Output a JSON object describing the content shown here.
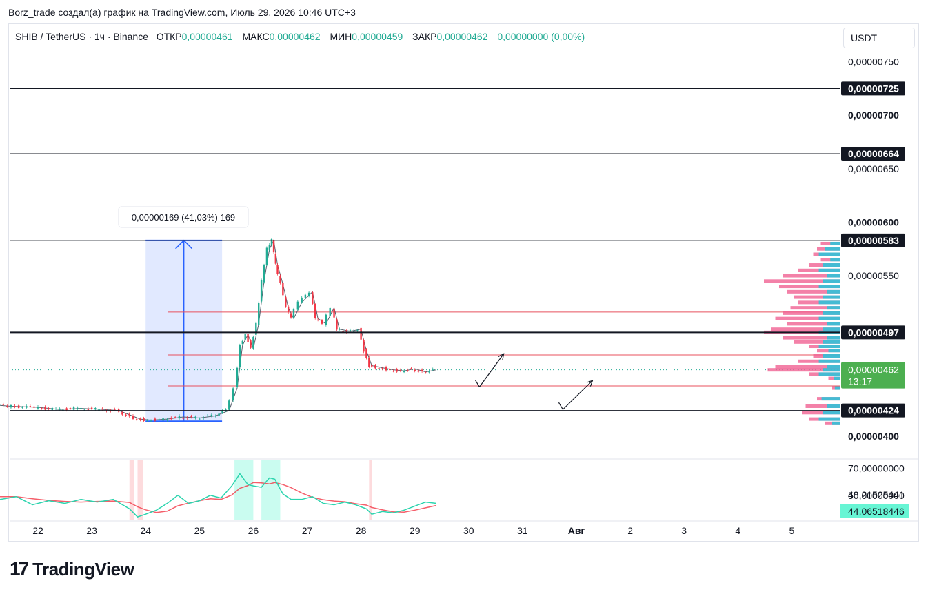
{
  "caption": "Borz_trade создал(а) график на TradingView.com, Июль 29, 2026 10:46 UTC+3",
  "legend": {
    "symbol": "SHIB / TetherUS · 1ч · Binance",
    "open_label": "ОТКР",
    "open": "0,00000461",
    "high_label": "МАКС",
    "high": "0,00000462",
    "low_label": "МИН",
    "low": "0,00000459",
    "close_label": "ЗАКР",
    "close": "0,00000462",
    "change": "0,00000000 (0,00%)"
  },
  "currency": "USDT",
  "logo": {
    "mark": "17",
    "word": "TradingView"
  },
  "colors": {
    "up": "#22ab94",
    "down": "#f23645",
    "accent": "#2962ff",
    "price_badge": "#4caf50",
    "rsi_badge": "#67f5d4"
  },
  "chart_data": {
    "type": "line",
    "price_axis": {
      "range": [
        3.8e-06,
        7.6e-06
      ],
      "ticks": [
        {
          "value": 7.5e-06,
          "label": "0,00000750"
        },
        {
          "value": 7e-06,
          "label": "0,00000700"
        },
        {
          "value": 6.5e-06,
          "label": "0,00000650"
        },
        {
          "value": 6e-06,
          "label": "0,00000600"
        },
        {
          "value": 5.5e-06,
          "label": "0,00000550"
        },
        {
          "value": 4e-06,
          "label": "0,00000400"
        }
      ]
    },
    "x_axis": {
      "labels": [
        {
          "day": 22,
          "label": "22"
        },
        {
          "day": 23,
          "label": "23"
        },
        {
          "day": 24,
          "label": "24"
        },
        {
          "day": 25,
          "label": "25"
        },
        {
          "day": 26,
          "label": "26"
        },
        {
          "day": 27,
          "label": "27"
        },
        {
          "day": 28,
          "label": "28"
        },
        {
          "day": 29,
          "label": "29"
        },
        {
          "day": 30,
          "label": "30"
        },
        {
          "day": 31,
          "label": "31"
        },
        {
          "day": 32,
          "label": "Авг"
        },
        {
          "day": 33,
          "label": "2"
        },
        {
          "day": 34,
          "label": "3"
        },
        {
          "day": 35,
          "label": "4"
        },
        {
          "day": 36,
          "label": "5"
        }
      ]
    },
    "horizontal_levels": [
      {
        "value": 7.25e-06,
        "label": "0,00000725",
        "style": "black"
      },
      {
        "value": 6.64e-06,
        "label": "0,00000664",
        "style": "black"
      },
      {
        "value": 5.83e-06,
        "label": "0,00000583",
        "style": "black"
      },
      {
        "value": 4.97e-06,
        "label": "0,00000497",
        "style": "black-bold"
      },
      {
        "value": 4.24e-06,
        "label": "0,00000424",
        "style": "black"
      }
    ],
    "red_levels": [
      5.16e-06,
      4.76e-06,
      4.47e-06
    ],
    "current_price": {
      "value": 4.62e-06,
      "label": "0,00000462",
      "countdown": "13:17"
    },
    "measure": {
      "from_day": 24.0,
      "to_day": 25.42,
      "low": 4.14e-06,
      "high": 5.83e-06,
      "label": "0,00000169 (41,03%) 169"
    },
    "price_path": [
      [
        21.0,
        4.3
      ],
      [
        21.5,
        4.28
      ],
      [
        22.0,
        4.27
      ],
      [
        22.4,
        4.25
      ],
      [
        22.8,
        4.26
      ],
      [
        23.2,
        4.25
      ],
      [
        23.5,
        4.24
      ],
      [
        23.7,
        4.2
      ],
      [
        23.9,
        4.16
      ],
      [
        24.1,
        4.15
      ],
      [
        24.4,
        4.16
      ],
      [
        24.7,
        4.18
      ],
      [
        25.0,
        4.17
      ],
      [
        25.3,
        4.19
      ],
      [
        25.55,
        4.24
      ],
      [
        25.7,
        4.45
      ],
      [
        25.8,
        4.85
      ],
      [
        25.9,
        4.95
      ],
      [
        26.0,
        4.82
      ],
      [
        26.1,
        5.05
      ],
      [
        26.2,
        5.45
      ],
      [
        26.3,
        5.75
      ],
      [
        26.38,
        5.83
      ],
      [
        26.45,
        5.6
      ],
      [
        26.55,
        5.42
      ],
      [
        26.65,
        5.2
      ],
      [
        26.75,
        5.1
      ],
      [
        26.9,
        5.25
      ],
      [
        27.1,
        5.35
      ],
      [
        27.2,
        5.1
      ],
      [
        27.35,
        5.05
      ],
      [
        27.5,
        5.2
      ],
      [
        27.6,
        5.0
      ],
      [
        27.8,
        4.98
      ],
      [
        28.0,
        5.0
      ],
      [
        28.1,
        4.8
      ],
      [
        28.2,
        4.66
      ],
      [
        28.4,
        4.64
      ],
      [
        28.6,
        4.62
      ],
      [
        28.8,
        4.61
      ],
      [
        29.0,
        4.63
      ],
      [
        29.2,
        4.6
      ],
      [
        29.4,
        4.62
      ]
    ],
    "projection_arrows": [
      [
        [
          30.2,
          4.46
        ],
        [
          30.65,
          4.77
        ]
      ],
      [
        [
          31.75,
          4.25
        ],
        [
          32.3,
          4.52
        ]
      ]
    ],
    "volume_profile_rows": [
      [
        5.8,
        0.25
      ],
      [
        5.75,
        0.3
      ],
      [
        5.7,
        0.35
      ],
      [
        5.65,
        0.25
      ],
      [
        5.6,
        0.4
      ],
      [
        5.55,
        0.55
      ],
      [
        5.5,
        0.75
      ],
      [
        5.45,
        1.0
      ],
      [
        5.4,
        0.8
      ],
      [
        5.35,
        0.7
      ],
      [
        5.3,
        0.6
      ],
      [
        5.25,
        0.55
      ],
      [
        5.2,
        0.65
      ],
      [
        5.15,
        0.75
      ],
      [
        5.1,
        0.85
      ],
      [
        5.05,
        0.7
      ],
      [
        5.0,
        0.9
      ],
      [
        4.97,
        1.0
      ],
      [
        4.92,
        0.75
      ],
      [
        4.88,
        0.6
      ],
      [
        4.84,
        0.4
      ],
      [
        4.8,
        0.3
      ],
      [
        4.75,
        0.35
      ],
      [
        4.7,
        0.55
      ],
      [
        4.65,
        0.85
      ],
      [
        4.62,
        0.95
      ],
      [
        4.58,
        0.4
      ],
      [
        4.54,
        0.15
      ],
      [
        4.45,
        0.1
      ],
      [
        4.35,
        0.3
      ],
      [
        4.28,
        0.45
      ],
      [
        4.22,
        0.5
      ],
      [
        4.16,
        0.4
      ],
      [
        4.12,
        0.2
      ]
    ],
    "rsi": {
      "ticks": [
        {
          "value": 70,
          "label": "70,00000000"
        },
        {
          "value": 50,
          "label": "50,00000000"
        }
      ],
      "ma_label": "48,21525441",
      "current_label": "44,06518446",
      "range": [
        32,
        76
      ],
      "path": [
        [
          21.0,
          51
        ],
        [
          21.3,
          47
        ],
        [
          21.6,
          49
        ],
        [
          21.9,
          43
        ],
        [
          22.2,
          46
        ],
        [
          22.5,
          44
        ],
        [
          22.8,
          47
        ],
        [
          23.1,
          45
        ],
        [
          23.4,
          47
        ],
        [
          23.7,
          40
        ],
        [
          23.85,
          34
        ],
        [
          24.0,
          36
        ],
        [
          24.2,
          39
        ],
        [
          24.4,
          44
        ],
        [
          24.6,
          50
        ],
        [
          24.8,
          44
        ],
        [
          25.0,
          46
        ],
        [
          25.2,
          50
        ],
        [
          25.4,
          48
        ],
        [
          25.6,
          57
        ],
        [
          25.75,
          66
        ],
        [
          25.9,
          58
        ],
        [
          26.0,
          57
        ],
        [
          26.15,
          56
        ],
        [
          26.3,
          63
        ],
        [
          26.4,
          62
        ],
        [
          26.55,
          51
        ],
        [
          26.7,
          47
        ],
        [
          26.9,
          47
        ],
        [
          27.1,
          49
        ],
        [
          27.3,
          44
        ],
        [
          27.5,
          43
        ],
        [
          27.7,
          45
        ],
        [
          27.9,
          43
        ],
        [
          28.1,
          40
        ],
        [
          28.2,
          36
        ],
        [
          28.4,
          38
        ],
        [
          28.6,
          37
        ],
        [
          28.8,
          39
        ],
        [
          29.0,
          42
        ],
        [
          29.2,
          45
        ],
        [
          29.4,
          44
        ]
      ]
    }
  }
}
